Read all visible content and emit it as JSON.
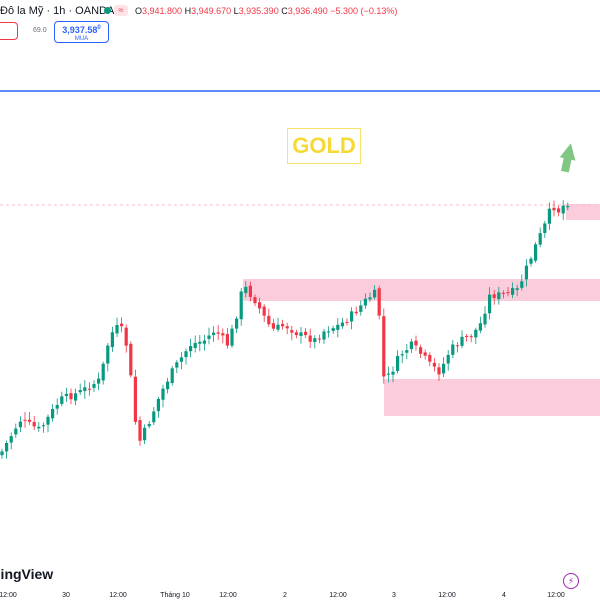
{
  "header": {
    "symbol_title": "Đô la Mỹ · 1h · OANDA",
    "change_pill": "≈",
    "ohlc": {
      "o": "3,941.800",
      "h": "3,949.670",
      "l": "3,935.390",
      "c": "3,936.490",
      "change": "−5.300 (−0.13%)"
    },
    "spread": "69.0",
    "buy_price": "3,937.58",
    "buy_price_sup": "0",
    "buy_label": "MUA"
  },
  "annotation": {
    "label": "GOLD",
    "color": "#f7d936"
  },
  "watermark": "dingView",
  "x_axis": [
    {
      "label": "12:00",
      "x": 8
    },
    {
      "label": "30",
      "x": 66
    },
    {
      "label": "12:00",
      "x": 118
    },
    {
      "label": "Tháng 10",
      "x": 175
    },
    {
      "label": "12:00",
      "x": 228
    },
    {
      "label": "2",
      "x": 285
    },
    {
      "label": "12:00",
      "x": 338
    },
    {
      "label": "3",
      "x": 394
    },
    {
      "label": "12:00",
      "x": 447
    },
    {
      "label": "4",
      "x": 504
    },
    {
      "label": "12:00",
      "x": 556
    }
  ],
  "colors": {
    "up": "#089981",
    "down": "#f23645",
    "zone": "#f8bbd0",
    "blue_line": "#2962ff",
    "arrow": "#81c784"
  }
}
